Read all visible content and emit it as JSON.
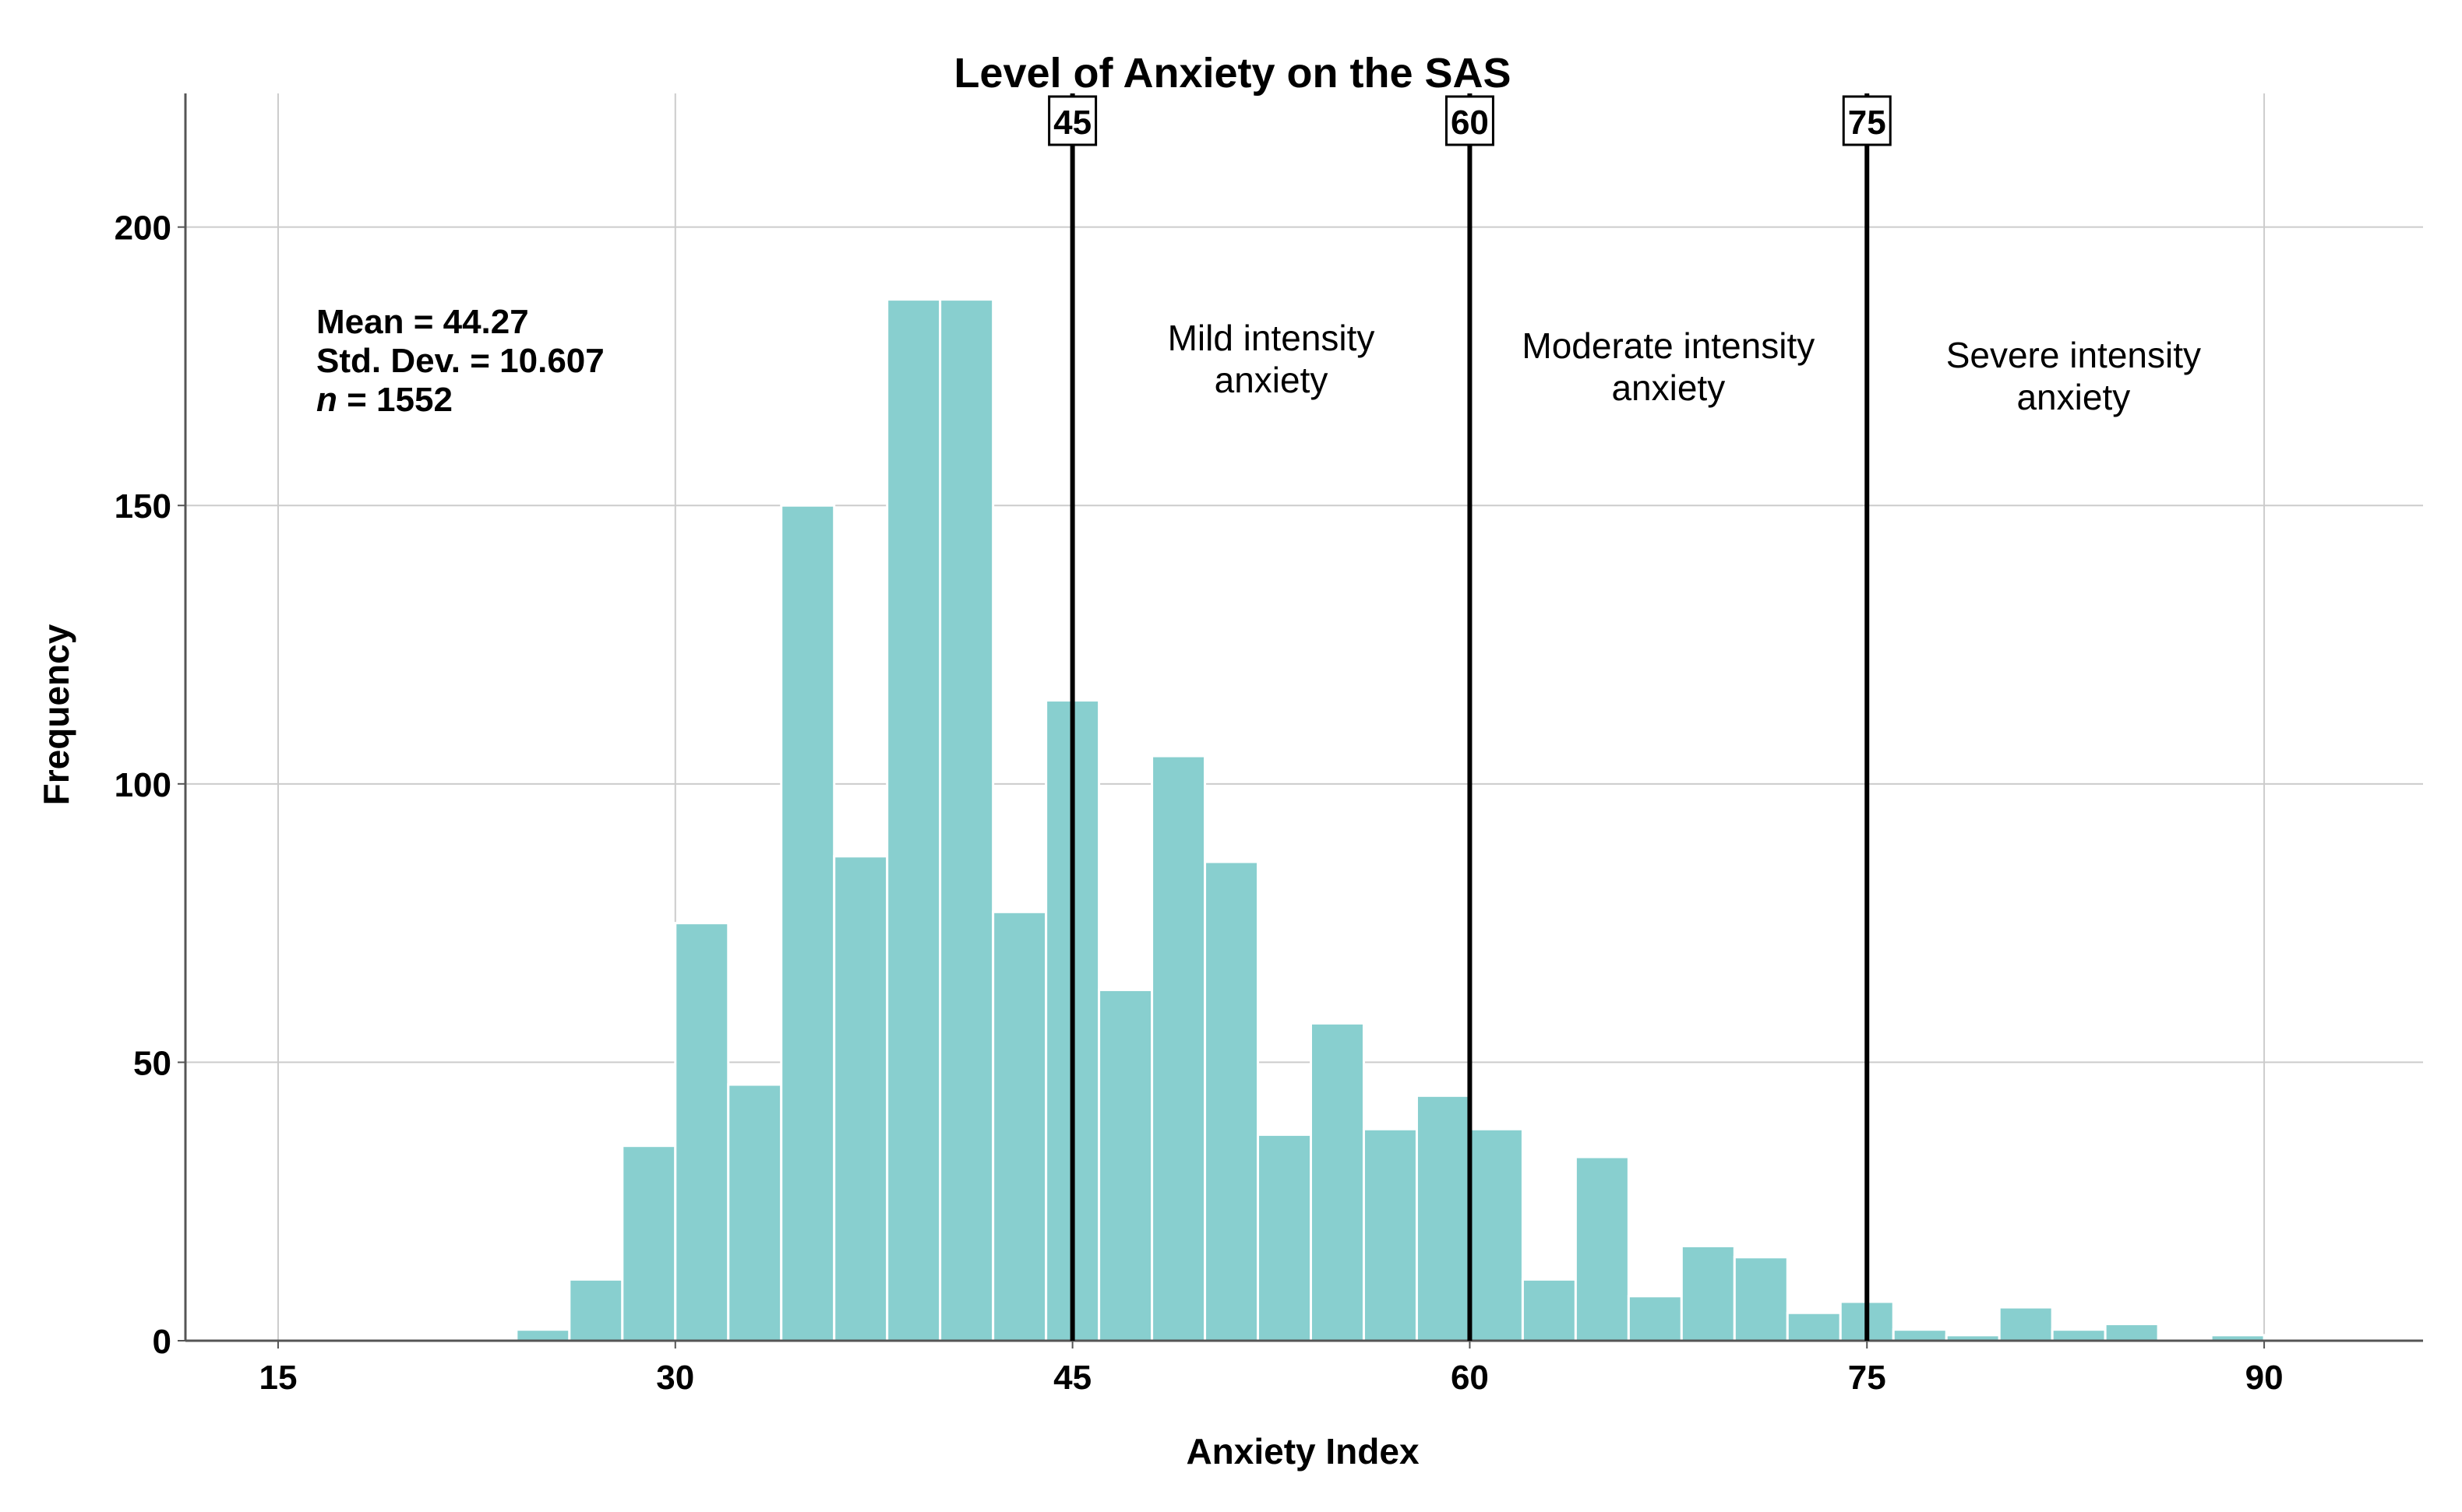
{
  "chart_data": {
    "type": "bar",
    "title": "Level of Anxiety on the SAS",
    "xlabel": "Anxiety Index",
    "ylabel": "Frequency",
    "xlim": [
      11.5,
      96
    ],
    "ylim": [
      0,
      224
    ],
    "x_ticks": [
      15,
      30,
      45,
      60,
      75,
      90
    ],
    "y_ticks": [
      0,
      50,
      100,
      150,
      200
    ],
    "grid": true,
    "bar_color": "#88cfcf",
    "bin_width": 2,
    "bins": [
      {
        "x0": 24,
        "x1": 26,
        "value": 2
      },
      {
        "x0": 26,
        "x1": 28,
        "value": 11
      },
      {
        "x0": 28,
        "x1": 30,
        "value": 35
      },
      {
        "x0": 30,
        "x1": 32,
        "value": 75
      },
      {
        "x0": 32,
        "x1": 34,
        "value": 46
      },
      {
        "x0": 34,
        "x1": 36,
        "value": 150
      },
      {
        "x0": 36,
        "x1": 38,
        "value": 87
      },
      {
        "x0": 38,
        "x1": 40,
        "value": 187
      },
      {
        "x0": 40,
        "x1": 42,
        "value": 187
      },
      {
        "x0": 42,
        "x1": 44,
        "value": 77
      },
      {
        "x0": 44,
        "x1": 46,
        "value": 115
      },
      {
        "x0": 46,
        "x1": 48,
        "value": 63
      },
      {
        "x0": 48,
        "x1": 50,
        "value": 105
      },
      {
        "x0": 50,
        "x1": 52,
        "value": 86
      },
      {
        "x0": 52,
        "x1": 54,
        "value": 37
      },
      {
        "x0": 54,
        "x1": 56,
        "value": 57
      },
      {
        "x0": 56,
        "x1": 58,
        "value": 38
      },
      {
        "x0": 58,
        "x1": 60,
        "value": 44
      },
      {
        "x0": 60,
        "x1": 62,
        "value": 38
      },
      {
        "x0": 62,
        "x1": 64,
        "value": 11
      },
      {
        "x0": 64,
        "x1": 66,
        "value": 33
      },
      {
        "x0": 66,
        "x1": 68,
        "value": 8
      },
      {
        "x0": 68,
        "x1": 70,
        "value": 17
      },
      {
        "x0": 70,
        "x1": 72,
        "value": 15
      },
      {
        "x0": 72,
        "x1": 74,
        "value": 5
      },
      {
        "x0": 74,
        "x1": 76,
        "value": 7
      },
      {
        "x0": 76,
        "x1": 78,
        "value": 2
      },
      {
        "x0": 78,
        "x1": 80,
        "value": 1
      },
      {
        "x0": 80,
        "x1": 82,
        "value": 6
      },
      {
        "x0": 82,
        "x1": 84,
        "value": 2
      },
      {
        "x0": 84,
        "x1": 86,
        "value": 3
      },
      {
        "x0": 86,
        "x1": 88,
        "value": 0
      },
      {
        "x0": 88,
        "x1": 90,
        "value": 1
      }
    ],
    "stats": {
      "mean_line": "Mean = 44.27",
      "sd_line": "Std. Dev. = 10.607",
      "n_symbol": "n",
      "n_value": " = 1552"
    },
    "reference_lines": [
      {
        "x": 45,
        "label": "45"
      },
      {
        "x": 60,
        "label": "60"
      },
      {
        "x": 75,
        "label": "75"
      }
    ],
    "zones": [
      {
        "x_center": 52.5,
        "line1": "Mild intensity",
        "line2": "anxiety"
      },
      {
        "x_center": 67.5,
        "line1": "Moderate intensity",
        "line2": "anxiety"
      },
      {
        "x_center": 82.8,
        "line1": "Severe intensity",
        "line2": "anxiety"
      }
    ]
  }
}
